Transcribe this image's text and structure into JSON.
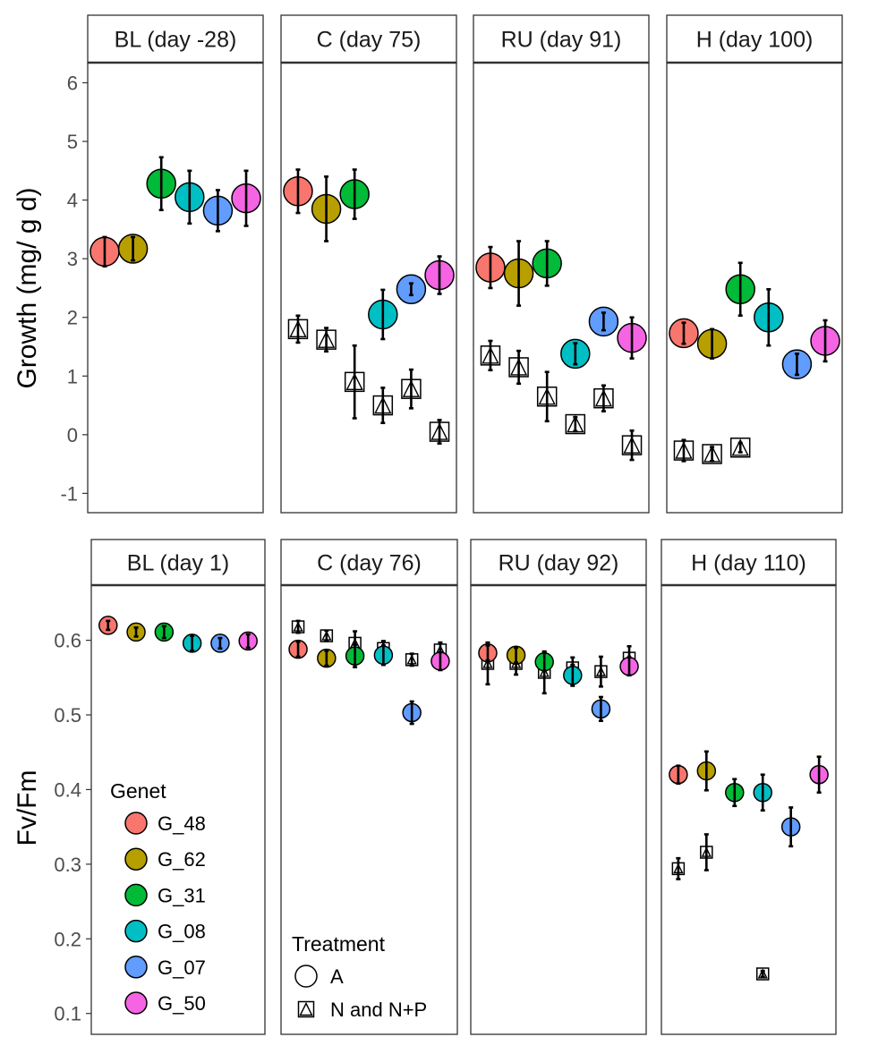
{
  "chart_data": [
    {
      "type": "scatter",
      "ylabel": "Growth (mg/ g d)",
      "yticks": [
        -1,
        0,
        1,
        2,
        3,
        4,
        5,
        6
      ],
      "ylim": [
        -1.3,
        6.7
      ],
      "panels": [
        {
          "label": "BL (day -28)",
          "A": [
            {
              "genet": "G_48",
              "y": 3.12,
              "err": 0.25
            },
            {
              "genet": "G_62",
              "y": 3.17,
              "err": 0.2
            },
            {
              "genet": "G_31",
              "y": 4.28,
              "err": 0.45
            },
            {
              "genet": "G_08",
              "y": 4.05,
              "err": 0.45
            },
            {
              "genet": "G_07",
              "y": 3.82,
              "err": 0.35
            },
            {
              "genet": "G_50",
              "y": 4.03,
              "err": 0.47
            }
          ],
          "N": []
        },
        {
          "label": "C (day 75)",
          "A": [
            {
              "genet": "G_48",
              "y": 4.15,
              "err": 0.37
            },
            {
              "genet": "G_62",
              "y": 3.85,
              "err": 0.55
            },
            {
              "genet": "G_31",
              "y": 4.1,
              "err": 0.42
            },
            {
              "genet": "G_08",
              "y": 2.05,
              "err": 0.42
            },
            {
              "genet": "G_07",
              "y": 2.48,
              "err": 0.1
            },
            {
              "genet": "G_50",
              "y": 2.72,
              "err": 0.32
            }
          ],
          "N": [
            {
              "genet": "G_48",
              "y": 1.8,
              "err": 0.23
            },
            {
              "genet": "G_62",
              "y": 1.62,
              "err": 0.2
            },
            {
              "genet": "G_31",
              "y": 0.9,
              "err": 0.62
            },
            {
              "genet": "G_08",
              "y": 0.5,
              "err": 0.3
            },
            {
              "genet": "G_07",
              "y": 0.78,
              "err": 0.33
            },
            {
              "genet": "G_50",
              "y": 0.05,
              "err": 0.2
            }
          ]
        },
        {
          "label": "RU (day 91)",
          "A": [
            {
              "genet": "G_48",
              "y": 2.85,
              "err": 0.35
            },
            {
              "genet": "G_62",
              "y": 2.75,
              "err": 0.55
            },
            {
              "genet": "G_31",
              "y": 2.92,
              "err": 0.38
            },
            {
              "genet": "G_08",
              "y": 1.38,
              "err": 0.18
            },
            {
              "genet": "G_07",
              "y": 1.93,
              "err": 0.15
            },
            {
              "genet": "G_50",
              "y": 1.65,
              "err": 0.35
            }
          ],
          "N": [
            {
              "genet": "G_48",
              "y": 1.35,
              "err": 0.25
            },
            {
              "genet": "G_62",
              "y": 1.15,
              "err": 0.28
            },
            {
              "genet": "G_31",
              "y": 0.65,
              "err": 0.42
            },
            {
              "genet": "G_08",
              "y": 0.18,
              "err": 0.12
            },
            {
              "genet": "G_07",
              "y": 0.62,
              "err": 0.22
            },
            {
              "genet": "G_50",
              "y": -0.18,
              "err": 0.25
            }
          ]
        },
        {
          "label": "H (day 100)",
          "A": [
            {
              "genet": "G_48",
              "y": 1.73,
              "err": 0.18
            },
            {
              "genet": "G_62",
              "y": 1.55,
              "err": 0.25
            },
            {
              "genet": "G_31",
              "y": 2.48,
              "err": 0.45
            },
            {
              "genet": "G_08",
              "y": 2.0,
              "err": 0.48
            },
            {
              "genet": "G_07",
              "y": 1.2,
              "err": 0.18
            },
            {
              "genet": "G_50",
              "y": 1.6,
              "err": 0.35
            }
          ],
          "N": [
            {
              "genet": "G_48",
              "y": -0.27,
              "err": 0.18
            },
            {
              "genet": "G_62",
              "y": -0.33,
              "err": 0.12
            },
            {
              "genet": "G_31",
              "y": -0.22,
              "err": 0.08
            }
          ]
        }
      ]
    },
    {
      "type": "scatter",
      "ylabel": "Fv/Fm",
      "yticks": [
        "0.1",
        "0.2",
        "0.3",
        "0.4",
        "0.5",
        "0.6"
      ],
      "ylim": [
        0.075,
        0.675
      ],
      "panels": [
        {
          "label": "BL (day 1)",
          "A": [
            {
              "genet": "G_48",
              "y": 0.62,
              "err": 0.006
            },
            {
              "genet": "G_62",
              "y": 0.611,
              "err": 0.006
            },
            {
              "genet": "G_31",
              "y": 0.611,
              "err": 0.008
            },
            {
              "genet": "G_08",
              "y": 0.596,
              "err": 0.01
            },
            {
              "genet": "G_07",
              "y": 0.596,
              "err": 0.007
            },
            {
              "genet": "G_50",
              "y": 0.599,
              "err": 0.009
            }
          ],
          "N": []
        },
        {
          "label": "C (day 76)",
          "A": [
            {
              "genet": "G_48",
              "y": 0.588,
              "err": 0.01
            },
            {
              "genet": "G_62",
              "y": 0.576,
              "err": 0.01
            },
            {
              "genet": "G_31",
              "y": 0.579,
              "err": 0.015
            },
            {
              "genet": "G_08",
              "y": 0.58,
              "err": 0.013
            },
            {
              "genet": "G_07",
              "y": 0.503,
              "err": 0.015
            },
            {
              "genet": "G_50",
              "y": 0.572,
              "err": 0.012
            }
          ],
          "N": [
            {
              "genet": "G_48",
              "y": 0.618,
              "err": 0.008
            },
            {
              "genet": "G_62",
              "y": 0.606,
              "err": 0.007
            },
            {
              "genet": "G_31",
              "y": 0.596,
              "err": 0.016
            },
            {
              "genet": "G_08",
              "y": 0.589,
              "err": 0.01
            },
            {
              "genet": "G_07",
              "y": 0.574,
              "err": 0.008
            },
            {
              "genet": "G_50",
              "y": 0.587,
              "err": 0.01
            }
          ]
        },
        {
          "label": "RU (day 92)",
          "A": [
            {
              "genet": "G_48",
              "y": 0.583,
              "err": 0.01
            },
            {
              "genet": "G_62",
              "y": 0.58,
              "err": 0.01
            },
            {
              "genet": "G_31",
              "y": 0.571,
              "err": 0.012
            },
            {
              "genet": "G_08",
              "y": 0.553,
              "err": 0.014
            },
            {
              "genet": "G_07",
              "y": 0.508,
              "err": 0.016
            },
            {
              "genet": "G_50",
              "y": 0.565,
              "err": 0.012
            }
          ],
          "N": [
            {
              "genet": "G_48",
              "y": 0.569,
              "err": 0.028
            },
            {
              "genet": "G_62",
              "y": 0.569,
              "err": 0.015
            },
            {
              "genet": "G_31",
              "y": 0.557,
              "err": 0.028
            },
            {
              "genet": "G_08",
              "y": 0.563,
              "err": 0.014
            },
            {
              "genet": "G_07",
              "y": 0.558,
              "err": 0.02
            },
            {
              "genet": "G_50",
              "y": 0.576,
              "err": 0.016
            }
          ]
        },
        {
          "label": "H (day 110)",
          "A": [
            {
              "genet": "G_48",
              "y": 0.42,
              "err": 0.012
            },
            {
              "genet": "G_62",
              "y": 0.425,
              "err": 0.026
            },
            {
              "genet": "G_31",
              "y": 0.396,
              "err": 0.018
            },
            {
              "genet": "G_08",
              "y": 0.396,
              "err": 0.024
            },
            {
              "genet": "G_07",
              "y": 0.35,
              "err": 0.026
            },
            {
              "genet": "G_50",
              "y": 0.42,
              "err": 0.024
            }
          ],
          "N": [
            {
              "genet": "G_48",
              "y": 0.294,
              "err": 0.014
            },
            {
              "genet": "G_62",
              "y": 0.316,
              "err": 0.024
            },
            {
              "genet": "G_08",
              "y": 0.153,
              "err": 0.004
            }
          ]
        }
      ]
    }
  ],
  "genets": [
    {
      "name": "G_48",
      "color": "#F8766D"
    },
    {
      "name": "G_62",
      "color": "#B79F00"
    },
    {
      "name": "G_31",
      "color": "#00BA38"
    },
    {
      "name": "G_08",
      "color": "#00BFC4"
    },
    {
      "name": "G_07",
      "color": "#619CFF"
    },
    {
      "name": "G_50",
      "color": "#F564E3"
    }
  ],
  "legend_genet": {
    "title": "Genet",
    "placement": "bottom-left of first bottom panel"
  },
  "legend_treatment": {
    "title": "Treatment",
    "items": [
      {
        "label": "A",
        "shape": "circle"
      },
      {
        "label": "N and N+P",
        "shape": "square-triangle"
      }
    ],
    "placement": "bottom-left of second bottom panel"
  }
}
